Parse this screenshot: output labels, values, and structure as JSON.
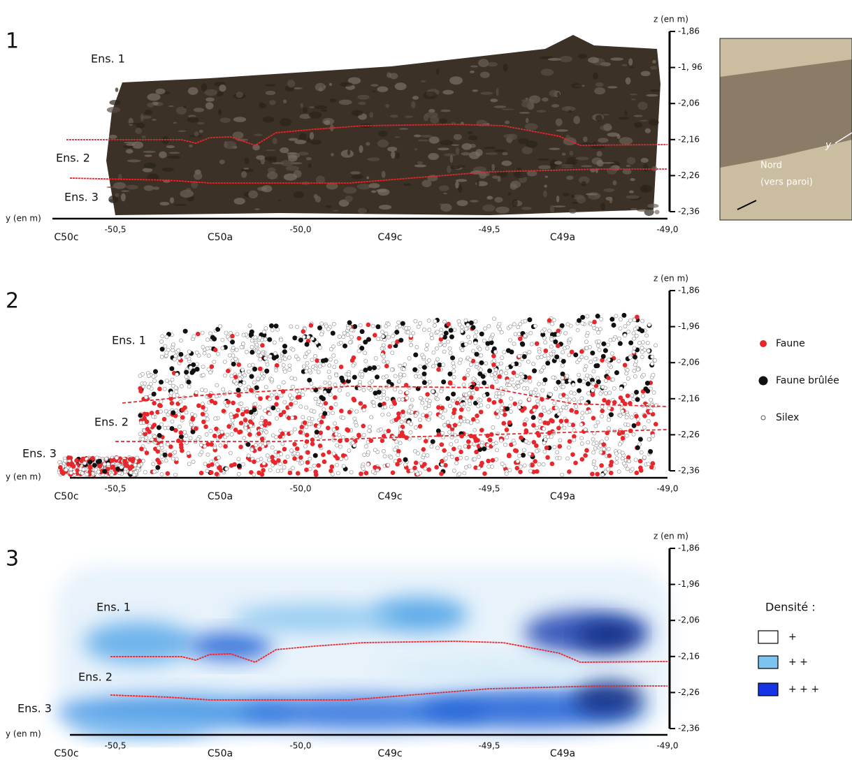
{
  "panels": [
    {
      "number": "1",
      "z_title": "z (en m)",
      "z_ticks": [
        "-1,86",
        "-1, 96",
        "-2,06",
        "-2,16",
        "-2,26",
        "-2,36"
      ],
      "y_title": "y (en m)",
      "y_ticks": [
        "-50,5",
        "-50,0",
        "-49,5",
        "-49,0"
      ],
      "squares": [
        "C50c",
        "C50a",
        "C49c",
        "C49a"
      ],
      "layers": [
        "Ens. 1",
        "Ens. 2",
        "Ens. 3"
      ]
    },
    {
      "number": "2",
      "z_title": "z (en m)",
      "z_ticks": [
        "-1,86",
        "-1,96",
        "-2,06",
        "-2,16",
        "-2,26",
        "-2,36"
      ],
      "y_title": "y (en m)",
      "y_ticks": [
        "-50,5",
        "-50,0",
        "-49,5",
        "-49,0"
      ],
      "squares": [
        "C50c",
        "C50a",
        "C49c",
        "C49a"
      ],
      "layers": [
        "Ens. 1",
        "Ens. 2",
        "Ens. 3"
      ]
    },
    {
      "number": "3",
      "z_title": "z (en m)",
      "z_ticks": [
        "-1,86",
        "-1,96",
        "-2,06",
        "-2,16",
        "-2,26",
        "-2,36"
      ],
      "y_title": "y (en m)",
      "y_ticks": [
        "-50,5",
        "-50,0",
        "-49,5",
        "-49,0"
      ],
      "squares": [
        "C50c",
        "C50a",
        "C49c",
        "C49a"
      ],
      "layers": [
        "Ens. 1",
        "Ens. 2",
        "Ens. 3"
      ]
    }
  ],
  "inset": {
    "north": "Nord",
    "north_note": "(vers paroi)",
    "axis": "y"
  },
  "legend_points": [
    "Faune",
    "Faune brûlée",
    "Silex"
  ],
  "legend_density": {
    "title": "Densité :",
    "levels": [
      "+",
      "+ +",
      "+ + +"
    ]
  }
}
